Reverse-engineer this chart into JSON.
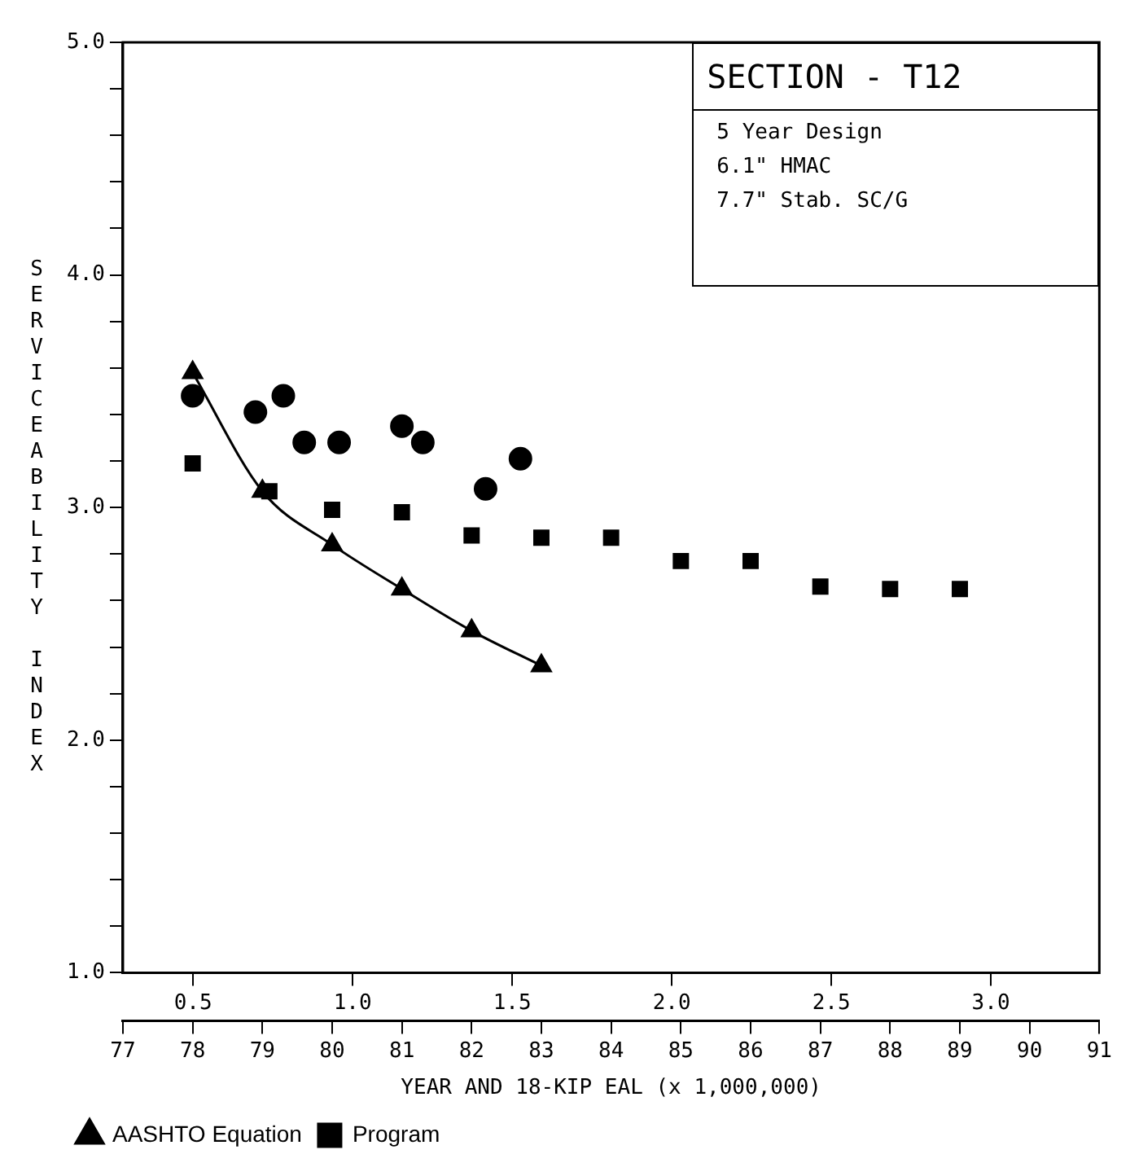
{
  "chart_data": {
    "type": "scatter",
    "xlabel": "YEAR AND 18-KIP EAL (x 1,000,000)",
    "ylabel": "SERVICEABILITY INDEX",
    "annotations": [
      "SECTION - T12",
      "5 Year Design",
      "6.1\" HMAC",
      "7.7\" Stab. SC/G"
    ],
    "xlim": [
      77,
      91
    ],
    "xticks": [
      77,
      78,
      79,
      80,
      81,
      82,
      83,
      84,
      85,
      86,
      87,
      88,
      89,
      90,
      91
    ],
    "x2lim": [
      0.28,
      3.34
    ],
    "x2ticks": [
      {
        "value": 0.5,
        "label": "0.5"
      },
      {
        "value": 1,
        "label": "1.0"
      },
      {
        "value": 1.5,
        "label": "1.5"
      },
      {
        "value": 2,
        "label": "2.0"
      },
      {
        "value": 2.5,
        "label": "2.5"
      },
      {
        "value": 3,
        "label": "3.0"
      }
    ],
    "ylim": [
      1,
      5
    ],
    "yticks": [
      {
        "value": 1,
        "label": "1.0"
      },
      {
        "value": 1.2,
        "label": null
      },
      {
        "value": 1.4,
        "label": null
      },
      {
        "value": 1.6,
        "label": null
      },
      {
        "value": 1.8,
        "label": null
      },
      {
        "value": 2,
        "label": "2.0"
      },
      {
        "value": 2.2,
        "label": null
      },
      {
        "value": 2.4,
        "label": null
      },
      {
        "value": 2.6,
        "label": null
      },
      {
        "value": 2.8,
        "label": null
      },
      {
        "value": 3,
        "label": "3.0"
      },
      {
        "value": 3.2,
        "label": null
      },
      {
        "value": 3.4,
        "label": null
      },
      {
        "value": 3.6,
        "label": null
      },
      {
        "value": 3.8,
        "label": null
      },
      {
        "value": 4,
        "label": "4.0"
      },
      {
        "value": 4.2,
        "label": null
      },
      {
        "value": 4.4,
        "label": null
      },
      {
        "value": 4.6,
        "label": null
      },
      {
        "value": 4.8,
        "label": null
      },
      {
        "value": 5,
        "label": "5.0"
      }
    ],
    "legend": "bottom left",
    "series": [
      {
        "marker": "circle",
        "color": "#000000",
        "x": [
          78.0,
          78.9,
          79.3,
          79.6,
          80.1,
          81.0,
          81.3,
          82.2,
          82.7
        ],
        "values": [
          3.48,
          3.41,
          3.48,
          3.28,
          3.28,
          3.35,
          3.28,
          3.08,
          3.21
        ]
      },
      {
        "type": "line",
        "name": "AASHTO Equation",
        "marker": "triangle",
        "color": "#000000",
        "x": [
          78,
          79,
          80,
          81,
          82,
          83
        ],
        "values": [
          3.58,
          3.07,
          2.84,
          2.65,
          2.47,
          2.32
        ]
      },
      {
        "name": "Program",
        "marker": "square",
        "color": "#000000",
        "x": [
          78,
          79.1,
          80,
          81,
          82,
          83,
          84,
          85,
          86,
          87,
          88,
          89
        ],
        "values": [
          3.19,
          3.07,
          2.99,
          2.98,
          2.88,
          2.87,
          2.87,
          2.77,
          2.77,
          2.66,
          2.65,
          2.65
        ]
      }
    ]
  }
}
